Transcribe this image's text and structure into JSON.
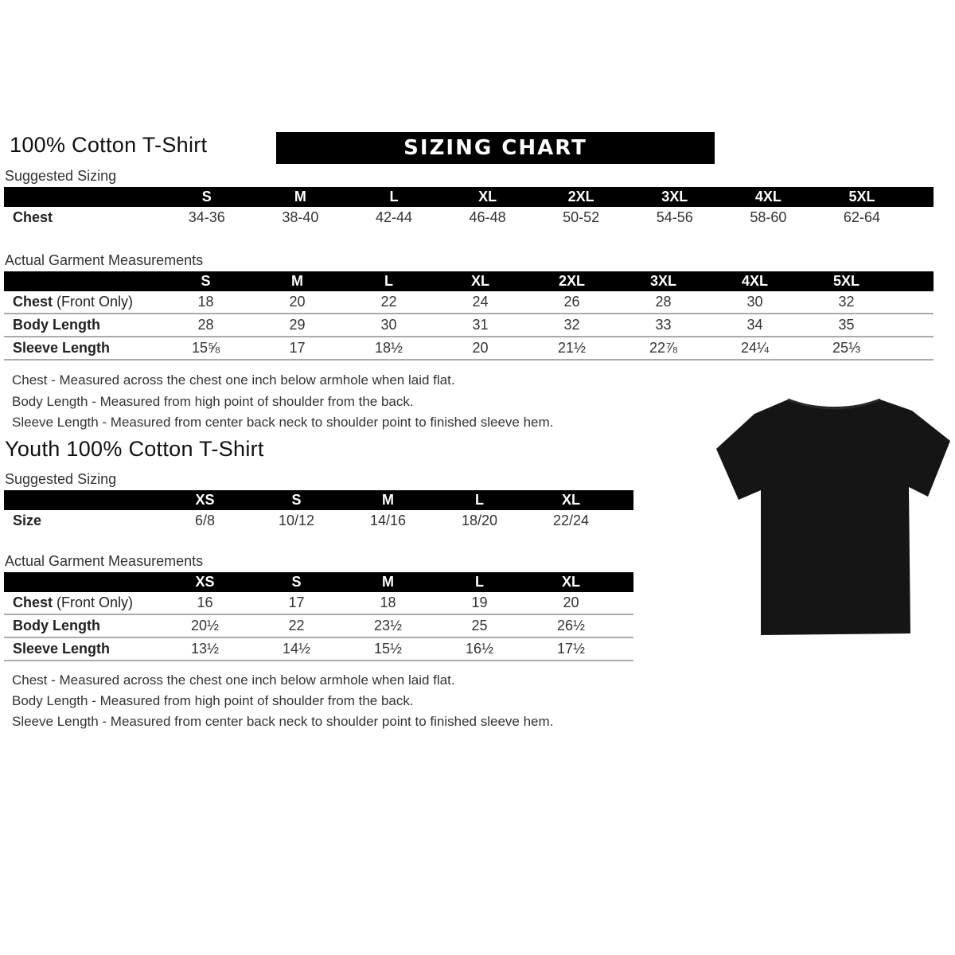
{
  "adult": {
    "title": "100% Cotton T-Shirt",
    "banner": "SIZING CHART",
    "suggested_label": "Suggested Sizing",
    "sizes": [
      "S",
      "M",
      "L",
      "XL",
      "2XL",
      "3XL",
      "4XL",
      "5XL"
    ],
    "suggested_rows": [
      {
        "label": "Chest",
        "values": [
          "34-36",
          "38-40",
          "42-44",
          "46-48",
          "50-52",
          "54-56",
          "58-60",
          "62-64"
        ]
      }
    ],
    "actual_label": "Actual Garment Measurements",
    "actual_rows": [
      {
        "label": "Chest",
        "label_note": "(Front Only)",
        "values": [
          "18",
          "20",
          "22",
          "24",
          "26",
          "28",
          "30",
          "32"
        ]
      },
      {
        "label": "Body Length",
        "values": [
          "28",
          "29",
          "30",
          "31",
          "32",
          "33",
          "34",
          "35"
        ]
      },
      {
        "label": "Sleeve Length",
        "values": [
          "15⅝",
          "17",
          "18½",
          "20",
          "21½",
          "22⅞",
          "24¼",
          "25⅓"
        ]
      }
    ],
    "notes": [
      "Chest - Measured across the chest one inch below armhole when laid flat.",
      "Body Length - Measured from high point of shoulder from the back.",
      "Sleeve Length - Measured from center back neck to shoulder point to finished sleeve hem."
    ]
  },
  "youth": {
    "title": "Youth 100% Cotton T-Shirt",
    "suggested_label": "Suggested Sizing",
    "sizes": [
      "XS",
      "S",
      "M",
      "L",
      "XL"
    ],
    "suggested_rows": [
      {
        "label": "Size",
        "values": [
          "6/8",
          "10/12",
          "14/16",
          "18/20",
          "22/24"
        ]
      }
    ],
    "actual_label": "Actual Garment Measurements",
    "actual_rows": [
      {
        "label": "Chest",
        "label_note": "(Front Only)",
        "values": [
          "16",
          "17",
          "18",
          "19",
          "20"
        ]
      },
      {
        "label": "Body Length",
        "values": [
          "20½",
          "22",
          "23½",
          "25",
          "26½"
        ]
      },
      {
        "label": "Sleeve Length",
        "values": [
          "13½",
          "14½",
          "15½",
          "16½",
          "17½"
        ]
      }
    ],
    "notes": [
      "Chest - Measured across the chest one inch below armhole when laid flat.",
      "Body Length - Measured from high point of shoulder from the back.",
      "Sleeve Length - Measured from center back neck to shoulder point to finished sleeve hem."
    ]
  },
  "image": {
    "icon": "black-tshirt-icon",
    "color": "#151515"
  }
}
